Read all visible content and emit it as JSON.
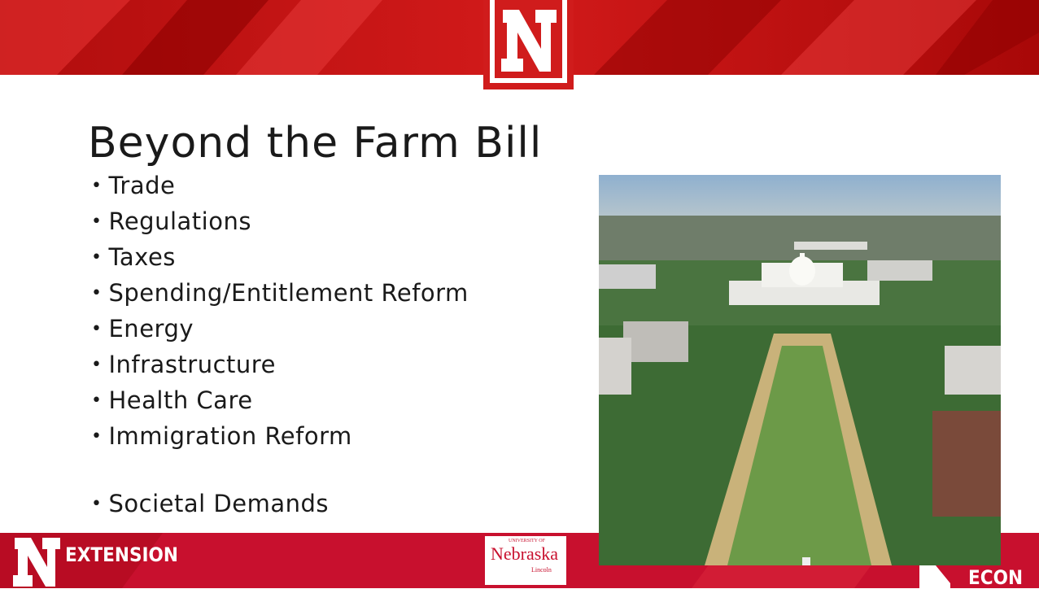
{
  "title": "Beyond the Farm Bill",
  "bullets": [
    "Trade",
    "Regulations",
    "Taxes",
    "Spending/Entitlement Reform",
    "Energy",
    "Infrastructure",
    "Health Care",
    "Immigration Reform",
    "Societal Demands"
  ],
  "footer": {
    "left": "EXTENSION",
    "center": {
      "top": "UNIVERSITY OF",
      "name": "Nebraska",
      "bottom": "Lincoln"
    },
    "right": "AG ECON"
  }
}
